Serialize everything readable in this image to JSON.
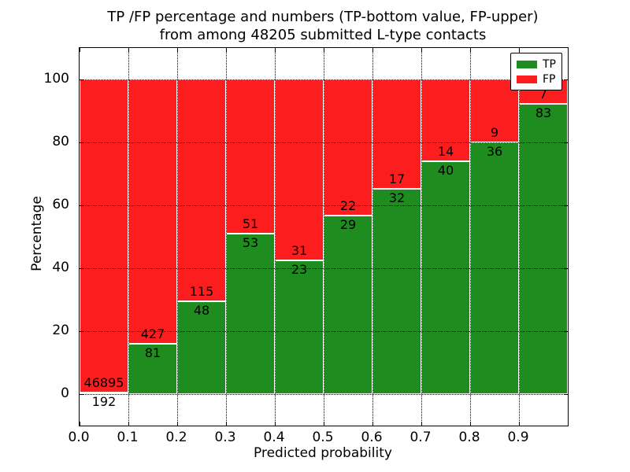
{
  "chart_data": {
    "type": "bar",
    "stacked": true,
    "normalized_to_percent": true,
    "title_line1": "TP /FP percentage and numbers (TP-bottom value, FP-upper)",
    "title_line2": "from among 48205 submitted L-type contacts",
    "xlabel": "Predicted probability",
    "ylabel": "Percentage",
    "xlim": [
      0.0,
      1.0
    ],
    "ylim": [
      -10,
      110
    ],
    "grid": "dotted",
    "bin_width": 0.1,
    "bin_starts": [
      0.0,
      0.1,
      0.2,
      0.3,
      0.4,
      0.5,
      0.6,
      0.7,
      0.8,
      0.9
    ],
    "xtick_values": [
      0.0,
      0.1,
      0.2,
      0.3,
      0.4,
      0.5,
      0.6,
      0.7,
      0.8,
      0.9
    ],
    "xtick_labels": [
      "0.0",
      "0.1",
      "0.2",
      "0.3",
      "0.4",
      "0.5",
      "0.6",
      "0.7",
      "0.8",
      "0.9"
    ],
    "ytick_values": [
      0,
      20,
      40,
      60,
      80,
      100
    ],
    "ytick_labels": [
      "0",
      "20",
      "40",
      "60",
      "80",
      "100"
    ],
    "series": [
      {
        "name": "TP",
        "color": "#1e8c1e",
        "counts": [
          192,
          81,
          48,
          53,
          23,
          29,
          32,
          40,
          36,
          83
        ]
      },
      {
        "name": "FP",
        "color": "#fc1e1e",
        "counts": [
          46895,
          427,
          115,
          51,
          31,
          22,
          17,
          14,
          9,
          7
        ]
      }
    ],
    "legend": {
      "position": "upper right",
      "entries": [
        {
          "label": "TP",
          "color": "#1e8c1e"
        },
        {
          "label": "FP",
          "color": "#fc1e1e"
        }
      ]
    }
  }
}
